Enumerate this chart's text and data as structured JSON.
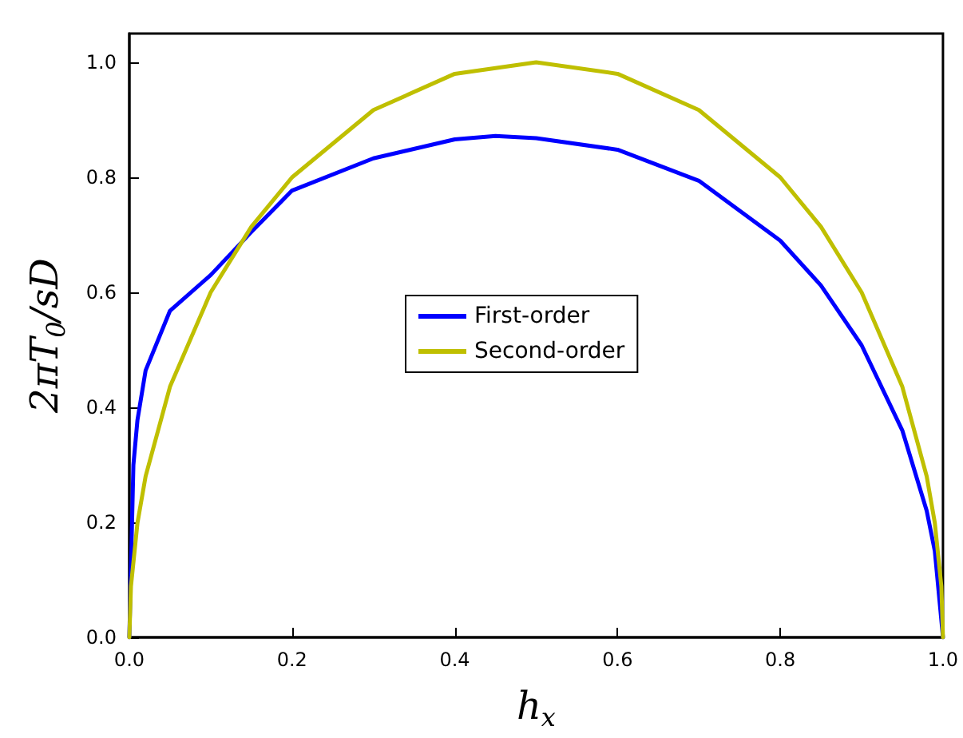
{
  "chart_data": {
    "type": "line",
    "xlabel": "h$_{x}$",
    "ylabel": "2πT$_{0}$/sD",
    "xlim": [
      0,
      1
    ],
    "ylim": [
      0,
      1.05
    ],
    "xticks": [
      {
        "value": 0,
        "label": "0.0"
      },
      {
        "value": 0.2,
        "label": "0.2"
      },
      {
        "value": 0.4,
        "label": "0.4"
      },
      {
        "value": 0.6,
        "label": "0.6"
      },
      {
        "value": 0.8,
        "label": "0.8"
      },
      {
        "value": 1,
        "label": "1.0"
      }
    ],
    "yticks": [
      {
        "value": 0,
        "label": "0.0"
      },
      {
        "value": 0.2,
        "label": "0.2"
      },
      {
        "value": 0.4,
        "label": "0.4"
      },
      {
        "value": 0.6,
        "label": "0.6"
      },
      {
        "value": 0.8,
        "label": "0.8"
      },
      {
        "value": 1,
        "label": "1.0"
      }
    ],
    "grid": false,
    "legend": "center",
    "marker": "none",
    "line_style": "solid",
    "series": [
      {
        "name": "First-order",
        "color": "#0000ff",
        "x": [
          0,
          0.005,
          0.01,
          0.02,
          0.05,
          0.1,
          0.15,
          0.2,
          0.3,
          0.4,
          0.45,
          0.5,
          0.6,
          0.7,
          0.8,
          0.85,
          0.9,
          0.95,
          0.98,
          0.99,
          1
        ],
        "values": [
          0,
          0.3,
          0.378,
          0.464,
          0.568,
          0.63,
          0.705,
          0.777,
          0.833,
          0.866,
          0.872,
          0.868,
          0.848,
          0.794,
          0.69,
          0.612,
          0.508,
          0.36,
          0.22,
          0.15,
          0
        ]
      },
      {
        "name": "Second-order",
        "color": "#bfbf00",
        "x": [
          0,
          0.002,
          0.01,
          0.02,
          0.05,
          0.1,
          0.15,
          0.2,
          0.3,
          0.4,
          0.5,
          0.6,
          0.7,
          0.8,
          0.85,
          0.9,
          0.95,
          0.98,
          0.99,
          0.998,
          1
        ],
        "values": [
          0,
          0.089,
          0.199,
          0.28,
          0.436,
          0.6,
          0.714,
          0.8,
          0.917,
          0.98,
          1,
          0.98,
          0.917,
          0.8,
          0.714,
          0.6,
          0.436,
          0.28,
          0.199,
          0.089,
          0
        ]
      }
    ]
  }
}
